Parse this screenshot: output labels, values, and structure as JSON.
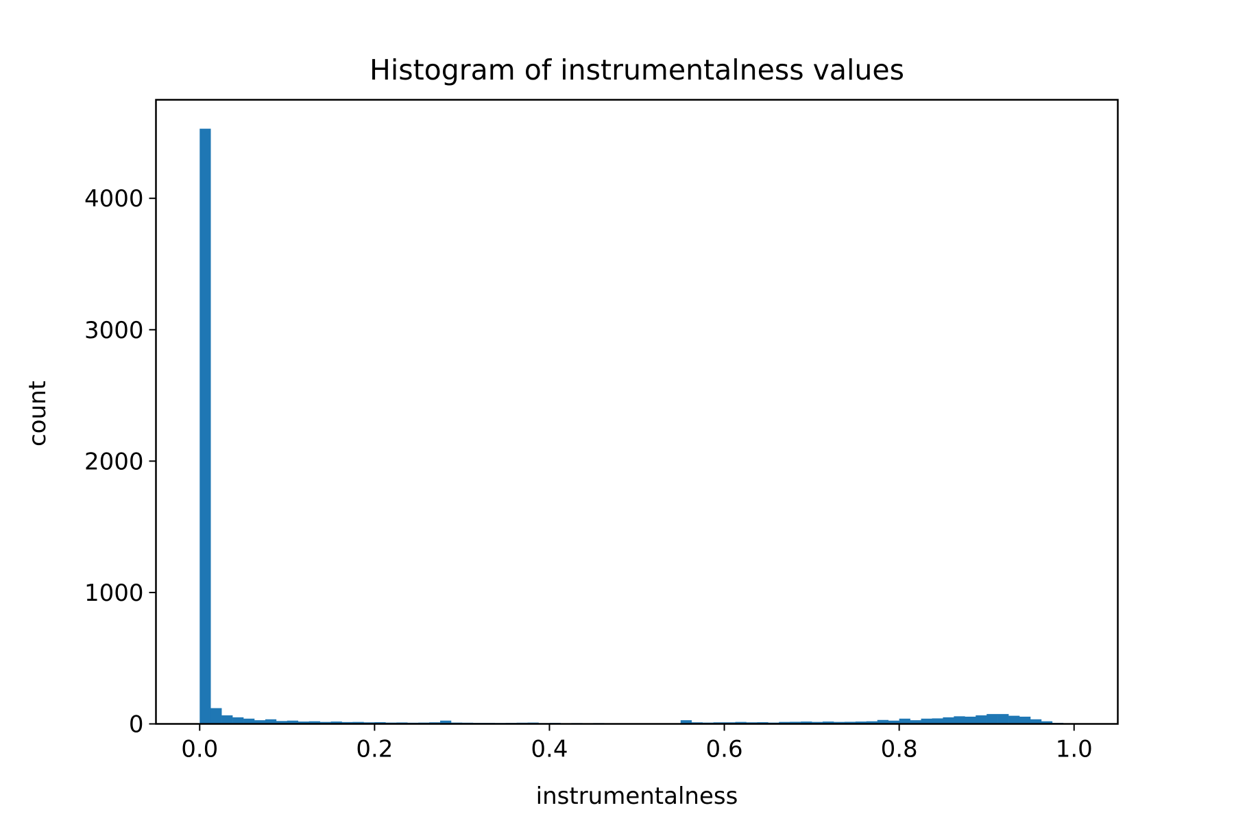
{
  "chart_data": {
    "type": "bar",
    "title": "Histogram of instrumentalness values",
    "xlabel": "instrumentalness",
    "ylabel": "count",
    "xlim": [
      -0.05,
      1.05
    ],
    "ylim": [
      0,
      4750
    ],
    "x_ticks": [
      "0.0",
      "0.2",
      "0.4",
      "0.6",
      "0.8",
      "1.0"
    ],
    "x_tick_values": [
      0.0,
      0.2,
      0.4,
      0.6,
      0.8,
      1.0
    ],
    "y_ticks": [
      "0",
      "1000",
      "2000",
      "3000",
      "4000"
    ],
    "y_tick_values": [
      0,
      1000,
      2000,
      3000,
      4000
    ],
    "bin_start": 0.0,
    "bin_width": 0.0125,
    "values": [
      4530,
      120,
      65,
      50,
      40,
      28,
      35,
      22,
      25,
      18,
      20,
      15,
      18,
      14,
      15,
      12,
      13,
      10,
      11,
      9,
      10,
      12,
      25,
      10,
      9,
      8,
      8,
      7,
      8,
      9,
      10,
      6,
      8,
      5,
      6,
      5,
      6,
      4,
      5,
      5,
      5,
      4,
      5,
      4,
      28,
      12,
      10,
      12,
      12,
      15,
      12,
      13,
      10,
      15,
      16,
      18,
      15,
      18,
      15,
      16,
      18,
      20,
      30,
      25,
      40,
      28,
      40,
      42,
      50,
      58,
      55,
      65,
      75,
      75,
      62,
      55,
      35,
      20,
      8,
      3
    ],
    "bar_color": "#1f77b4",
    "grid": false,
    "legend": "none"
  }
}
